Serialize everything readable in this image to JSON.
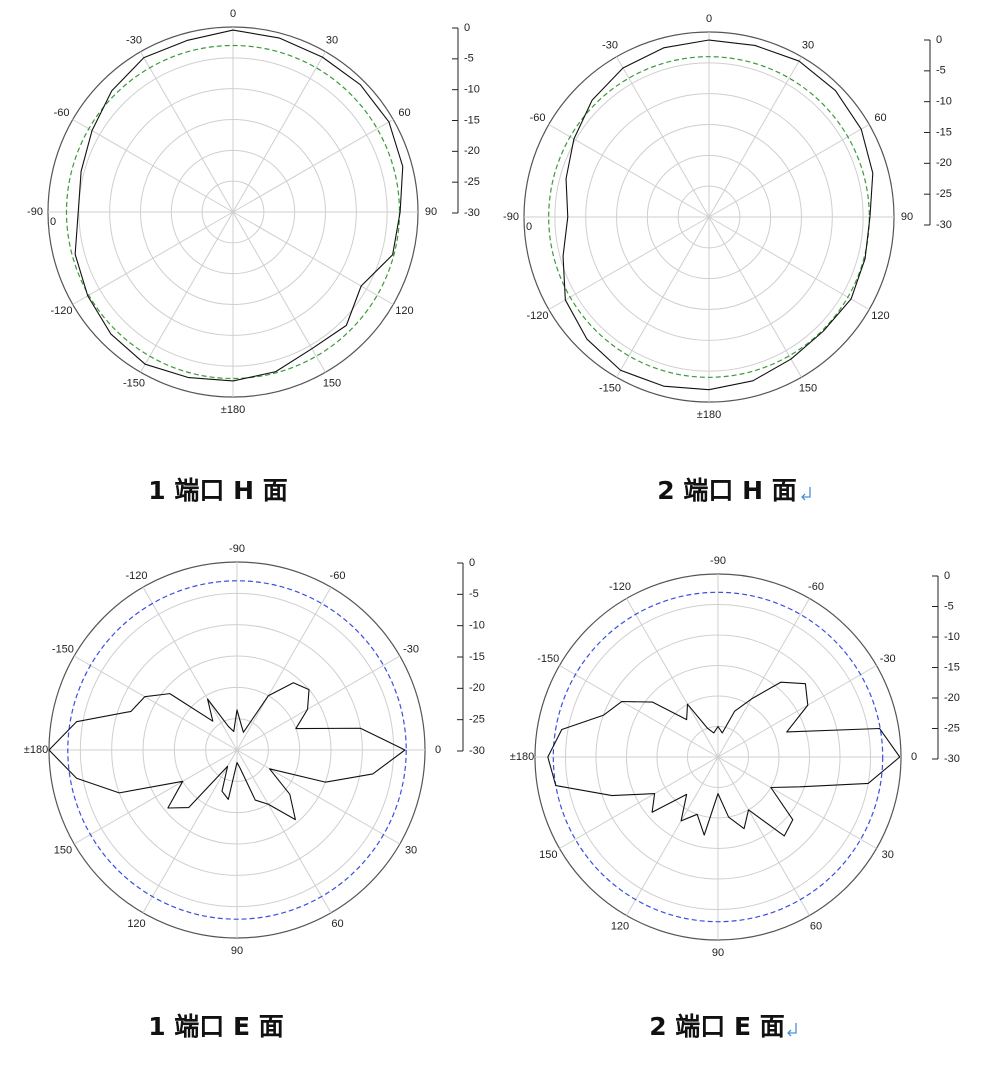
{
  "chart_data": [
    {
      "type": "polar",
      "title": "1 端口 H 面",
      "theta_zero": "N",
      "theta_direction": "clockwise",
      "grid": true,
      "x": [
        0,
        15,
        30,
        45,
        60,
        75,
        90,
        105,
        120,
        135,
        150,
        165,
        180,
        195,
        210,
        225,
        240,
        255,
        270,
        285,
        300,
        315,
        330,
        345
      ],
      "series": [
        {
          "color": "#111111",
          "values": [
            -0.5,
            -0.8,
            -1.0,
            -0.8,
            -0.8,
            -1.5,
            -2.9,
            -3.2,
            -6.0,
            -4.0,
            -4.4,
            -3.2,
            -2.6,
            -2.2,
            -1.5,
            -2.0,
            -2.8,
            -3.5,
            -4.9,
            -4.5,
            -3.6,
            -2.2,
            -1.1,
            -1.2
          ]
        }
      ],
      "reference": {
        "value": -3,
        "color": "#3c9a3c"
      },
      "thetaticks": [
        0,
        30,
        60,
        90,
        120,
        150,
        {
          "value": 180,
          "label": "±180"
        },
        -150,
        -120,
        -90,
        -60,
        -30
      ],
      "rlim": [
        -30,
        0
      ],
      "rticks": [
        0,
        -5,
        -10,
        -15,
        -20,
        -25,
        -30
      ]
    },
    {
      "type": "polar",
      "title": "2 端口 H 面",
      "theta_zero": "N",
      "theta_direction": "clockwise",
      "grid": true,
      "x": [
        0,
        15,
        30,
        45,
        60,
        75,
        90,
        105,
        120,
        135,
        150,
        165,
        180,
        195,
        210,
        225,
        240,
        255,
        270,
        285,
        300,
        315,
        330,
        345
      ],
      "series": [
        {
          "color": "#111111",
          "values": [
            -1.3,
            -1.2,
            -0.8,
            -1.0,
            -1.5,
            -2.5,
            -3.9,
            -3.8,
            -3.4,
            -3.8,
            -3.4,
            -2.5,
            -2.0,
            -1.6,
            -1.3,
            -2.0,
            -3.1,
            -5.5,
            -7.1,
            -6.0,
            -4.7,
            -3.2,
            -2.1,
            -1.6
          ]
        }
      ],
      "reference": {
        "value": -4,
        "color": "#3c9a3c"
      },
      "thetaticks": [
        0,
        30,
        60,
        90,
        120,
        150,
        {
          "value": 180,
          "label": "±180"
        },
        -150,
        -120,
        -90,
        -60,
        -30
      ],
      "rlim": [
        -30,
        0
      ],
      "rticks": [
        0,
        -5,
        -10,
        -15,
        -20,
        -25,
        -30
      ]
    },
    {
      "type": "polar",
      "title": "1 端口 E 面",
      "theta_zero": "E",
      "theta_direction": "clockwise",
      "grid": true,
      "x": [
        0,
        10,
        20,
        30,
        40,
        50,
        60,
        70,
        80,
        90,
        100,
        110,
        120,
        130,
        140,
        150,
        160,
        170,
        180,
        190,
        200,
        210,
        220,
        230,
        240,
        250,
        260,
        270,
        280,
        290,
        300,
        310,
        320,
        330,
        340,
        350
      ],
      "series": [
        {
          "color": "#111111",
          "values": [
            -3.2,
            -8,
            -15,
            -24,
            -19,
            -15.5,
            -20,
            -21.5,
            -27,
            -28,
            -22,
            -23,
            -27,
            -18,
            -15.6,
            -20,
            -10,
            -4,
            0,
            -4,
            -12,
            -13,
            -16,
            -24,
            -20.6,
            -26,
            -27,
            -23.6,
            -26,
            -27,
            -20,
            -16,
            -15,
            -17,
            -20,
            -10
          ]
        }
      ],
      "reference": {
        "value": -3,
        "color": "#3a4fe0"
      },
      "thetaticks": [
        -90,
        -60,
        -30,
        0,
        30,
        60,
        90,
        120,
        150,
        {
          "value": 180,
          "label": "±180"
        },
        -150,
        -120
      ],
      "rlim": [
        -30,
        0
      ],
      "rticks": [
        0,
        -5,
        -10,
        -15,
        -20,
        -25,
        -30
      ]
    },
    {
      "type": "polar",
      "title": "2 端口 E 面",
      "theta_zero": "E",
      "theta_direction": "clockwise",
      "grid": true,
      "x": [
        0,
        10,
        20,
        30,
        40,
        50,
        60,
        70,
        80,
        90,
        100,
        110,
        120,
        130,
        140,
        150,
        160,
        170,
        180,
        190,
        200,
        210,
        220,
        230,
        240,
        250,
        260,
        270,
        280,
        290,
        300,
        310,
        320,
        330,
        340,
        350
      ],
      "series": [
        {
          "color": "#111111",
          "values": [
            -0.2,
            -5,
            -15.7,
            -20,
            -14,
            -13.1,
            -20,
            -17.5,
            -20,
            -24,
            -17,
            -20,
            -17.9,
            -22,
            -15.9,
            -18,
            -11.5,
            -3,
            -2.1,
            -4,
            -10,
            -11.8,
            -16,
            -22,
            -20,
            -25,
            -26,
            -25,
            -26,
            -22,
            -19,
            -14,
            -11.3,
            -13,
            -18,
            -3.1
          ]
        }
      ],
      "reference": {
        "value": -3,
        "color": "#3a4fe0"
      },
      "thetaticks": [
        -90,
        -60,
        -30,
        0,
        30,
        60,
        90,
        120,
        150,
        {
          "value": 180,
          "label": "±180"
        },
        -150,
        -120
      ],
      "rlim": [
        -30,
        0
      ],
      "rticks": [
        0,
        -5,
        -10,
        -15,
        -20,
        -25,
        -30
      ]
    }
  ]
}
